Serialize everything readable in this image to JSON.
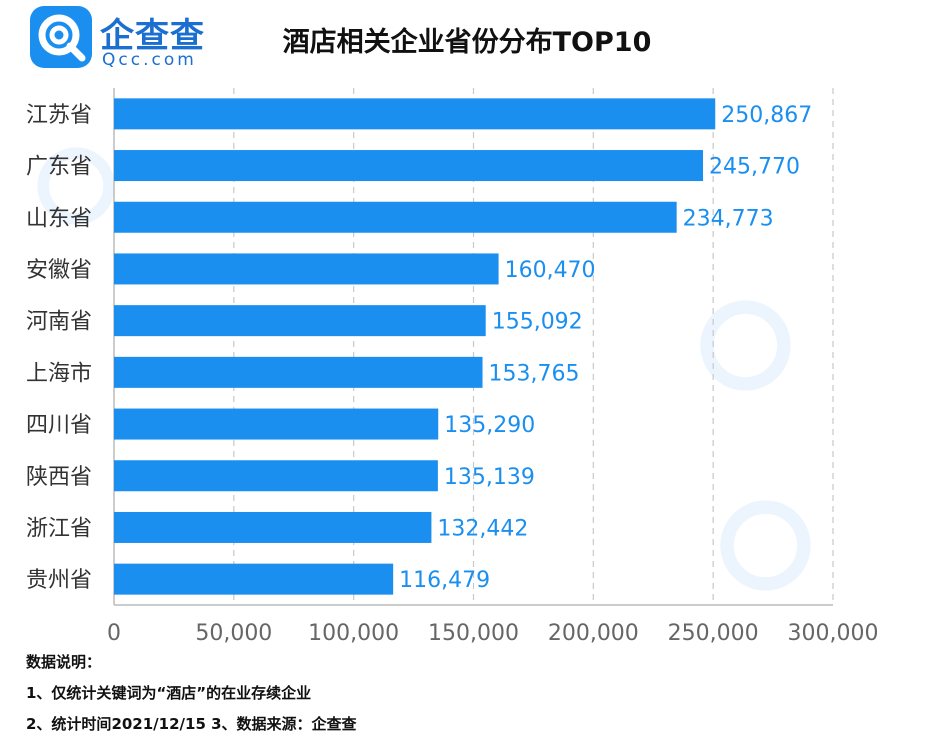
{
  "brand": {
    "name": "企查查",
    "site": "Qcc.com",
    "accent": "#1a8ff0"
  },
  "title": "酒店相关企业省份分布TOP10",
  "chart_data": {
    "type": "bar",
    "orientation": "horizontal",
    "title": "酒店相关企业省份分布TOP10",
    "categories": [
      "江苏省",
      "广东省",
      "山东省",
      "安徽省",
      "河南省",
      "上海市",
      "四川省",
      "陕西省",
      "浙江省",
      "贵州省"
    ],
    "values": [
      250867,
      245770,
      234773,
      160470,
      155092,
      153765,
      135290,
      135139,
      132442,
      116479
    ],
    "value_labels": [
      "250,867",
      "245,770",
      "234,773",
      "160,470",
      "155,092",
      "153,765",
      "135,290",
      "135,139",
      "132,442",
      "116,479"
    ],
    "xlim": [
      0,
      300000
    ],
    "x_ticks": [
      0,
      50000,
      100000,
      150000,
      200000,
      250000,
      300000
    ],
    "x_tick_labels": [
      "0",
      "50,000",
      "100,000",
      "150,000",
      "200,000",
      "250,000",
      "300,000"
    ],
    "grid": "vertical-dashed",
    "bar_color": "#1a8ff0",
    "label_color": "#1a8ff0"
  },
  "notes": {
    "heading": "数据说明：",
    "line1": "1、仅统计关键词为“酒店”的在业存续企业",
    "line2": "2、统计时间2021/12/15  3、数据来源：企查查"
  }
}
